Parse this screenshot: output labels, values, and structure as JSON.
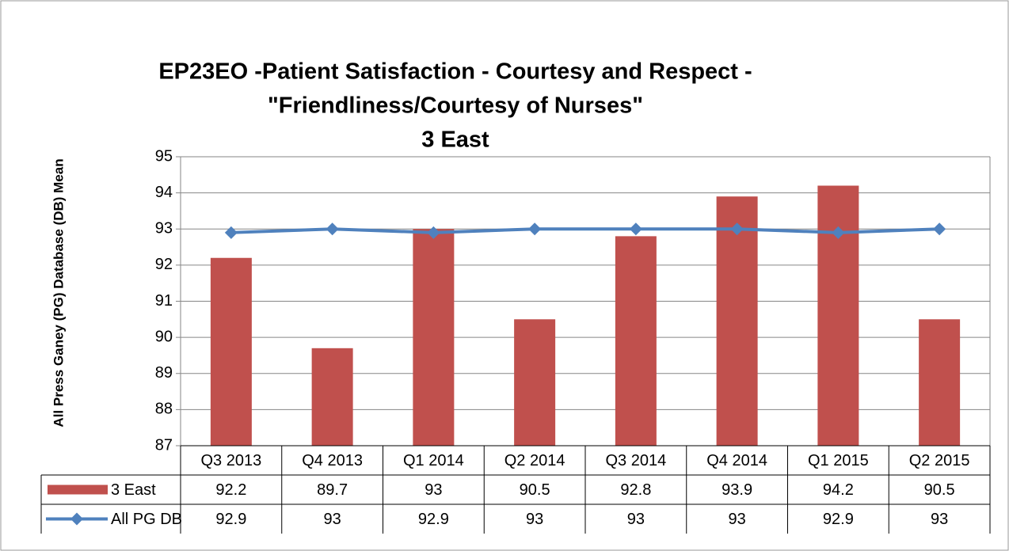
{
  "chart_data": {
    "type": "bar",
    "title": [
      "EP23EO -Patient Satisfaction - Courtesy and Respect -",
      "\"Friendliness/Courtesy of Nurses\"",
      "3 East"
    ],
    "y_label": "All Press Ganey (PG) Database (DB) Mean",
    "categories": [
      "Q3 2013",
      "Q4 2013",
      "Q1 2014",
      "Q2 2014",
      "Q3 2014",
      "Q4 2014",
      "Q1 2015",
      "Q2 2015"
    ],
    "series": [
      {
        "name": "3 East",
        "type": "bar",
        "color": "#c0504d",
        "values": [
          92.2,
          89.7,
          93,
          90.5,
          92.8,
          93.9,
          94.2,
          90.5
        ]
      },
      {
        "name": "All PG DB",
        "type": "line",
        "color": "#4f81bd",
        "values": [
          92.9,
          93,
          92.9,
          93,
          93,
          93,
          92.9,
          93
        ]
      }
    ],
    "ylim": [
      87,
      95
    ],
    "yticks": [
      87,
      88,
      89,
      90,
      91,
      92,
      93,
      94,
      95
    ],
    "grid": true
  }
}
